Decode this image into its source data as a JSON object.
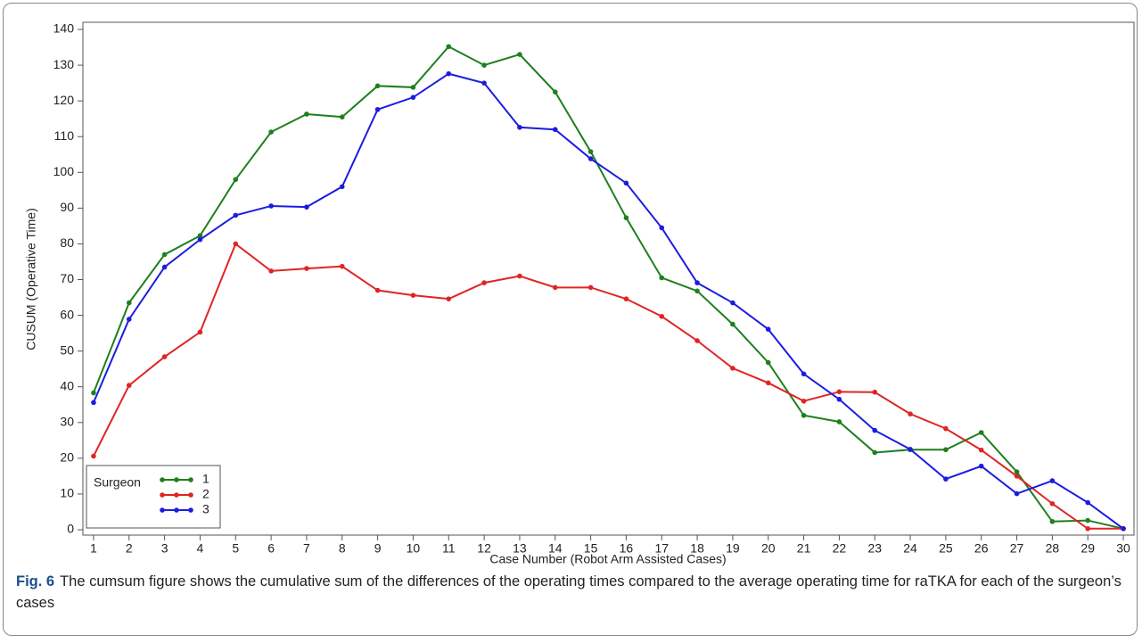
{
  "chart_data": {
    "type": "line",
    "x_label": "Case Number (Robot Arm Assisted Cases)",
    "y_label": "CUSUM (Operative Time)",
    "x": [
      1,
      2,
      3,
      4,
      5,
      6,
      7,
      8,
      9,
      10,
      11,
      12,
      13,
      14,
      15,
      16,
      17,
      18,
      19,
      20,
      21,
      22,
      23,
      24,
      25,
      26,
      27,
      28,
      29,
      30
    ],
    "series": [
      {
        "name": "1",
        "color": "#1e7f1e",
        "values": [
          38.3,
          63.5,
          77,
          82.3,
          98,
          111.3,
          116.3,
          115.5,
          124.2,
          123.8,
          135.2,
          130,
          133,
          122.5,
          105.8,
          87.3,
          70.5,
          66.8,
          57.5,
          46.8,
          32,
          30.2,
          21.6,
          22.4,
          22.4,
          27.2,
          16.2,
          2.3,
          2.6,
          0.3
        ]
      },
      {
        "name": "2",
        "color": "#e02424",
        "values": [
          20.6,
          40.4,
          48.4,
          55.3,
          80,
          72.4,
          73.1,
          73.7,
          67,
          65.6,
          64.6,
          69.1,
          71,
          67.8,
          67.8,
          64.6,
          59.7,
          52.9,
          45.2,
          41.1,
          36,
          38.6,
          38.5,
          32.4,
          28.3,
          22.3,
          15,
          7.3,
          0.3,
          0.3
        ]
      },
      {
        "name": "3",
        "color": "#1c1ce0",
        "values": [
          35.6,
          58.9,
          73.5,
          81.2,
          88,
          90.6,
          90.3,
          96,
          117.6,
          121,
          127.6,
          125,
          112.6,
          112,
          103.8,
          97,
          84.5,
          69.1,
          63.5,
          56.1,
          43.6,
          36.5,
          27.8,
          22.5,
          14.2,
          17.8,
          10.1,
          13.7,
          7.6,
          0.3
        ]
      }
    ],
    "legend_title": "Surgeon",
    "legend": "lower left",
    "xlim": [
      0.7,
      30.3
    ],
    "xticks": [
      1,
      2,
      3,
      4,
      5,
      6,
      7,
      8,
      9,
      10,
      11,
      12,
      13,
      14,
      15,
      16,
      17,
      18,
      19,
      20,
      21,
      22,
      23,
      24,
      25,
      26,
      27,
      28,
      29,
      30
    ],
    "ylim": [
      -1.5,
      142
    ],
    "yticks": [
      0,
      10,
      20,
      30,
      40,
      50,
      60,
      70,
      80,
      90,
      100,
      110,
      120,
      130,
      140
    ]
  },
  "caption": {
    "label": "Fig. 6",
    "text": "The cumsum figure shows the cumulative sum of the differences of the operating times compared to the average operating time for raTKA for each of the surgeon’s cases"
  }
}
